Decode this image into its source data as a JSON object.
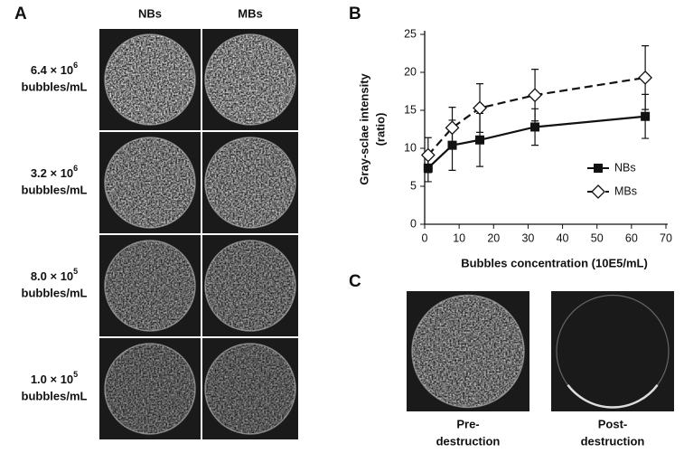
{
  "panel_a": {
    "label": "A",
    "columns": [
      "NBs",
      "MBs"
    ],
    "rows": [
      {
        "mantissa": "6.4 × 10",
        "exponent": "6",
        "unit": "bubbles/mL"
      },
      {
        "mantissa": "3.2 × 10",
        "exponent": "6",
        "unit": "bubbles/mL"
      },
      {
        "mantissa": "8.0 × 10",
        "exponent": "5",
        "unit": "bubbles/mL"
      },
      {
        "mantissa": "1.0 × 10",
        "exponent": "5",
        "unit": "bubbles/mL"
      }
    ]
  },
  "chart_data": {
    "type": "line",
    "label": "B",
    "y_label": [
      "Gray-sclae intensity",
      "(ratio)"
    ],
    "x_label": "Bubbles concentration (10E5/mL)",
    "x": [
      1,
      8,
      16,
      32,
      64
    ],
    "series": [
      {
        "name": "NBs",
        "color": "#111111",
        "line_style": "solid",
        "marker": "square",
        "values": [
          7.4,
          10.4,
          11.1,
          12.8,
          14.2
        ],
        "errors": [
          1.8,
          3.3,
          3.5,
          2.4,
          2.9
        ]
      },
      {
        "name": "MBs",
        "color": "#111111",
        "line_style": "dashed",
        "marker": "diamond",
        "values": [
          9.1,
          12.7,
          15.3,
          17.0,
          19.3
        ],
        "errors": [
          2.3,
          2.7,
          3.2,
          3.4,
          4.2
        ]
      }
    ],
    "xlim": [
      0,
      70
    ],
    "xticks": [
      0,
      10,
      20,
      30,
      40,
      50,
      60,
      70
    ],
    "ylim": [
      0,
      25
    ],
    "yticks": [
      0,
      5,
      10,
      15,
      20,
      25
    ],
    "grid": false,
    "legend_position": "right"
  },
  "panel_c": {
    "label": "C",
    "captions": [
      [
        "Pre-",
        "destruction"
      ],
      [
        "Post-",
        "destruction"
      ]
    ]
  }
}
